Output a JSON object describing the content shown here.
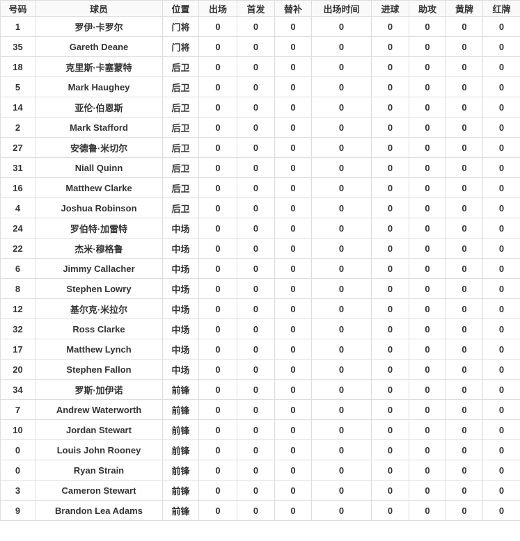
{
  "table": {
    "columns": [
      "号码",
      "球员",
      "位置",
      "出场",
      "首发",
      "替补",
      "出场时间",
      "进球",
      "助攻",
      "黄牌",
      "红牌"
    ],
    "rows": [
      [
        "1",
        "罗伊·卡罗尔",
        "门将",
        "0",
        "0",
        "0",
        "0",
        "0",
        "0",
        "0",
        "0"
      ],
      [
        "35",
        "Gareth Deane",
        "门将",
        "0",
        "0",
        "0",
        "0",
        "0",
        "0",
        "0",
        "0"
      ],
      [
        "18",
        "克里斯·卡塞蒙特",
        "后卫",
        "0",
        "0",
        "0",
        "0",
        "0",
        "0",
        "0",
        "0"
      ],
      [
        "5",
        "Mark Haughey",
        "后卫",
        "0",
        "0",
        "0",
        "0",
        "0",
        "0",
        "0",
        "0"
      ],
      [
        "14",
        "亚伦·伯恩斯",
        "后卫",
        "0",
        "0",
        "0",
        "0",
        "0",
        "0",
        "0",
        "0"
      ],
      [
        "2",
        "Mark Stafford",
        "后卫",
        "0",
        "0",
        "0",
        "0",
        "0",
        "0",
        "0",
        "0"
      ],
      [
        "27",
        "安德鲁·米切尔",
        "后卫",
        "0",
        "0",
        "0",
        "0",
        "0",
        "0",
        "0",
        "0"
      ],
      [
        "31",
        "Niall Quinn",
        "后卫",
        "0",
        "0",
        "0",
        "0",
        "0",
        "0",
        "0",
        "0"
      ],
      [
        "16",
        "Matthew Clarke",
        "后卫",
        "0",
        "0",
        "0",
        "0",
        "0",
        "0",
        "0",
        "0"
      ],
      [
        "4",
        "Joshua Robinson",
        "后卫",
        "0",
        "0",
        "0",
        "0",
        "0",
        "0",
        "0",
        "0"
      ],
      [
        "24",
        "罗伯特·加雷特",
        "中场",
        "0",
        "0",
        "0",
        "0",
        "0",
        "0",
        "0",
        "0"
      ],
      [
        "22",
        "杰米·穆格鲁",
        "中场",
        "0",
        "0",
        "0",
        "0",
        "0",
        "0",
        "0",
        "0"
      ],
      [
        "6",
        "Jimmy Callacher",
        "中场",
        "0",
        "0",
        "0",
        "0",
        "0",
        "0",
        "0",
        "0"
      ],
      [
        "8",
        "Stephen Lowry",
        "中场",
        "0",
        "0",
        "0",
        "0",
        "0",
        "0",
        "0",
        "0"
      ],
      [
        "12",
        "基尔克·米拉尔",
        "中场",
        "0",
        "0",
        "0",
        "0",
        "0",
        "0",
        "0",
        "0"
      ],
      [
        "32",
        "Ross Clarke",
        "中场",
        "0",
        "0",
        "0",
        "0",
        "0",
        "0",
        "0",
        "0"
      ],
      [
        "17",
        "Matthew Lynch",
        "中场",
        "0",
        "0",
        "0",
        "0",
        "0",
        "0",
        "0",
        "0"
      ],
      [
        "20",
        "Stephen Fallon",
        "中场",
        "0",
        "0",
        "0",
        "0",
        "0",
        "0",
        "0",
        "0"
      ],
      [
        "34",
        "罗斯·加伊诺",
        "前锋",
        "0",
        "0",
        "0",
        "0",
        "0",
        "0",
        "0",
        "0"
      ],
      [
        "7",
        "Andrew Waterworth",
        "前锋",
        "0",
        "0",
        "0",
        "0",
        "0",
        "0",
        "0",
        "0"
      ],
      [
        "10",
        "Jordan Stewart",
        "前锋",
        "0",
        "0",
        "0",
        "0",
        "0",
        "0",
        "0",
        "0"
      ],
      [
        "0",
        "Louis John Rooney",
        "前锋",
        "0",
        "0",
        "0",
        "0",
        "0",
        "0",
        "0",
        "0"
      ],
      [
        "0",
        "Ryan Strain",
        "前锋",
        "0",
        "0",
        "0",
        "0",
        "0",
        "0",
        "0",
        "0"
      ],
      [
        "3",
        "Cameron Stewart",
        "前锋",
        "0",
        "0",
        "0",
        "0",
        "0",
        "0",
        "0",
        "0"
      ],
      [
        "9",
        "Brandon Lea Adams",
        "前锋",
        "0",
        "0",
        "0",
        "0",
        "0",
        "0",
        "0",
        "0"
      ]
    ]
  }
}
